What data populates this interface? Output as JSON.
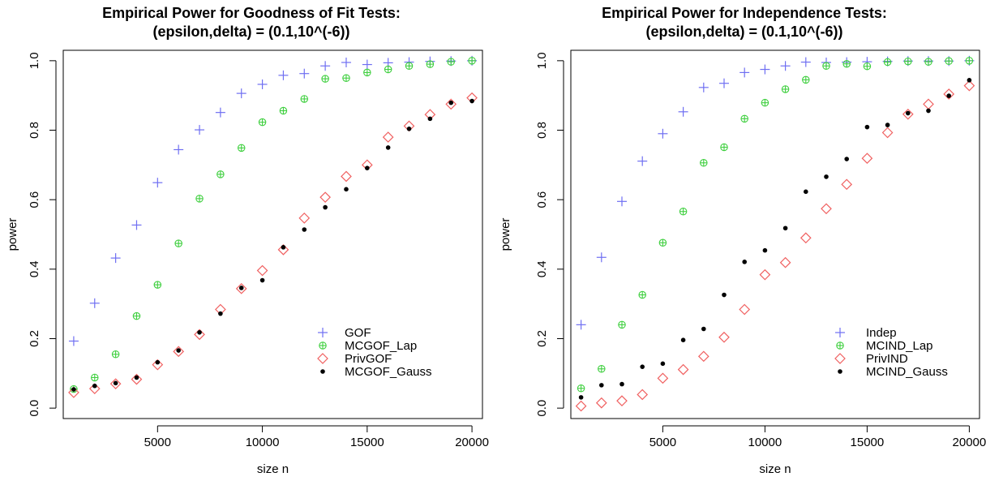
{
  "chart_data": [
    {
      "type": "scatter",
      "title": "Empirical Power for Goodness of Fit Tests:",
      "subtitle": "(epsilon,delta) = (0.1,10^(-6))",
      "xlabel": "size n",
      "ylabel": "power",
      "xlim": [
        500,
        20500
      ],
      "ylim": [
        -0.03,
        1.03
      ],
      "xticks": [
        5000,
        10000,
        15000,
        20000
      ],
      "xtick_labels": [
        "5000",
        "10000",
        "15000",
        "20000"
      ],
      "yticks": [
        0.0,
        0.2,
        0.4,
        0.6,
        0.8,
        1.0
      ],
      "ytick_labels": [
        "0.0",
        "0.2",
        "0.4",
        "0.6",
        "0.8",
        "1.0"
      ],
      "grid": false,
      "legend_position": "bottom-right",
      "x": [
        1000,
        2000,
        3000,
        4000,
        5000,
        6000,
        7000,
        8000,
        9000,
        10000,
        11000,
        12000,
        13000,
        14000,
        15000,
        16000,
        17000,
        18000,
        19000,
        20000
      ],
      "series": [
        {
          "name": "GOF",
          "marker": "plus",
          "color": "#6f6ff2",
          "values": [
            0.193,
            0.302,
            0.432,
            0.527,
            0.649,
            0.744,
            0.801,
            0.851,
            0.906,
            0.932,
            0.958,
            0.963,
            0.985,
            0.995,
            0.989,
            0.994,
            0.996,
            0.998,
            0.999,
            1.0
          ]
        },
        {
          "name": "MCGOF_Lap",
          "marker": "circle-plus",
          "color": "#3ecf3e",
          "values": [
            0.055,
            0.088,
            0.155,
            0.265,
            0.355,
            0.474,
            0.603,
            0.673,
            0.749,
            0.823,
            0.856,
            0.89,
            0.948,
            0.95,
            0.966,
            0.975,
            0.985,
            0.99,
            0.997,
            1.0
          ]
        },
        {
          "name": "PrivGOF",
          "marker": "diamond",
          "color": "#f06060",
          "values": [
            0.045,
            0.056,
            0.07,
            0.083,
            0.125,
            0.163,
            0.212,
            0.284,
            0.344,
            0.396,
            0.456,
            0.547,
            0.607,
            0.667,
            0.7,
            0.78,
            0.812,
            0.845,
            0.875,
            0.893
          ]
        },
        {
          "name": "MCGOF_Gauss",
          "marker": "dot",
          "color": "#000000",
          "values": [
            0.054,
            0.064,
            0.072,
            0.088,
            0.132,
            0.166,
            0.218,
            0.272,
            0.346,
            0.368,
            0.463,
            0.514,
            0.578,
            0.63,
            0.691,
            0.75,
            0.804,
            0.833,
            0.879,
            0.884
          ]
        }
      ]
    },
    {
      "type": "scatter",
      "title": "Empirical Power for Independence Tests:",
      "subtitle": "(epsilon,delta) = (0.1,10^(-6))",
      "xlabel": "size n",
      "ylabel": "power",
      "xlim": [
        500,
        20500
      ],
      "ylim": [
        -0.03,
        1.03
      ],
      "xticks": [
        5000,
        10000,
        15000,
        20000
      ],
      "xtick_labels": [
        "5000",
        "10000",
        "15000",
        "20000"
      ],
      "yticks": [
        0.0,
        0.2,
        0.4,
        0.6,
        0.8,
        1.0
      ],
      "ytick_labels": [
        "0.0",
        "0.2",
        "0.4",
        "0.6",
        "0.8",
        "1.0"
      ],
      "grid": false,
      "legend_position": "bottom-right",
      "x": [
        1000,
        2000,
        3000,
        4000,
        5000,
        6000,
        7000,
        8000,
        9000,
        10000,
        11000,
        12000,
        13000,
        14000,
        15000,
        16000,
        17000,
        18000,
        19000,
        20000
      ],
      "series": [
        {
          "name": "Indep",
          "marker": "plus",
          "color": "#6f6ff2",
          "values": [
            0.24,
            0.434,
            0.595,
            0.711,
            0.79,
            0.853,
            0.923,
            0.935,
            0.966,
            0.975,
            0.985,
            0.996,
            0.995,
            0.996,
            0.997,
            0.998,
            0.999,
            0.999,
            0.999,
            1.0
          ]
        },
        {
          "name": "MCIND_Lap",
          "marker": "circle-plus",
          "color": "#3ecf3e",
          "values": [
            0.057,
            0.113,
            0.24,
            0.326,
            0.476,
            0.566,
            0.706,
            0.751,
            0.833,
            0.879,
            0.918,
            0.945,
            0.985,
            0.991,
            0.984,
            0.996,
            0.998,
            0.997,
            0.999,
            1.0
          ]
        },
        {
          "name": "PrivIND",
          "marker": "diamond",
          "color": "#f06060",
          "values": [
            0.006,
            0.015,
            0.021,
            0.039,
            0.086,
            0.111,
            0.149,
            0.204,
            0.284,
            0.384,
            0.419,
            0.49,
            0.574,
            0.644,
            0.719,
            0.793,
            0.846,
            0.875,
            0.904,
            0.928
          ]
        },
        {
          "name": "MCIND_Gauss",
          "marker": "dot",
          "color": "#000000",
          "values": [
            0.031,
            0.066,
            0.069,
            0.119,
            0.128,
            0.196,
            0.228,
            0.326,
            0.421,
            0.454,
            0.518,
            0.623,
            0.666,
            0.717,
            0.809,
            0.815,
            0.849,
            0.856,
            0.899,
            0.944
          ]
        }
      ]
    }
  ]
}
